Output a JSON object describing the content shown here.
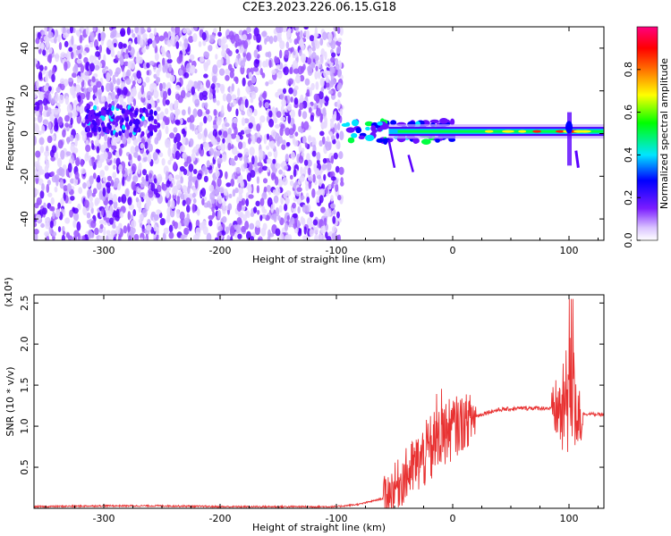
{
  "title": "C2E3.2023.226.06.15.G18",
  "chart_data": [
    {
      "type": "heatmap",
      "xlabel": "Height of straight line (km)",
      "ylabel": "Frequency (Hz)",
      "xlim": [
        -360,
        130
      ],
      "ylim": [
        -50,
        50
      ],
      "x_ticks": [
        -300,
        -200,
        -100,
        0,
        100
      ],
      "x_tick_labels": [
        "-300",
        "-200",
        "-100",
        "0",
        "100"
      ],
      "y_ticks": [
        -40,
        -20,
        0,
        20,
        40
      ],
      "y_tick_labels": [
        "-40",
        "-20",
        "0",
        "20",
        "40"
      ],
      "colorbar": {
        "label": "Normalized spectral amplitude",
        "range": [
          0.0,
          1.0
        ],
        "ticks": [
          0.0,
          0.2,
          0.4,
          0.6,
          0.8
        ],
        "tick_labels": [
          "0.0",
          "0.2",
          "0.4",
          "0.6",
          "0.8"
        ],
        "colors": [
          "#ffffff",
          "#d9c2ff",
          "#7a1cff",
          "#0000ff",
          "#00e5ff",
          "#00ff00",
          "#ffff00",
          "#ff7000",
          "#ff0000",
          "#ff007f"
        ]
      },
      "features": [
        {
          "x_range": [
            -360,
            -95
          ],
          "freq_range": [
            -50,
            50
          ],
          "amplitude": 0.15
        },
        {
          "x_range": [
            -315,
            -255
          ],
          "freq_center": 6,
          "amplitude": 0.45
        },
        {
          "x_range": [
            -95,
            0
          ],
          "freq_center": 1,
          "amplitude": 0.6
        },
        {
          "x_range": [
            0,
            130
          ],
          "freq_center": 1,
          "amplitude": 0.75
        },
        {
          "x": 100,
          "freq_range": [
            -15,
            10
          ],
          "amplitude": 0.45
        }
      ]
    },
    {
      "type": "line",
      "xlabel": "Height of straight line (km)",
      "ylabel": "SNR (10 * v/v)",
      "y_multiplier": "(x10⁴)",
      "xlim": [
        -360,
        130
      ],
      "ylim": [
        0.0,
        2.6
      ],
      "x_ticks": [
        -300,
        -200,
        -100,
        0,
        100
      ],
      "x_tick_labels": [
        "-300",
        "-200",
        "-100",
        "0",
        "100"
      ],
      "y_ticks": [
        0.5,
        1.0,
        1.5,
        2.0,
        2.5
      ],
      "y_tick_labels": [
        "0.5",
        "1.0",
        "1.5",
        "2.0",
        "2.5"
      ],
      "color": "#e83232",
      "x": [
        -360,
        -300,
        -250,
        -200,
        -150,
        -100,
        -80,
        -60,
        -50,
        -40,
        -30,
        -20,
        -10,
        0,
        10,
        20,
        30,
        40,
        60,
        80,
        90,
        95,
        100,
        105,
        110,
        115,
        130
      ],
      "y": [
        0.02,
        0.03,
        0.03,
        0.02,
        0.02,
        0.02,
        0.05,
        0.12,
        0.25,
        0.4,
        0.55,
        0.7,
        0.85,
        0.98,
        1.05,
        1.12,
        1.17,
        1.2,
        1.22,
        1.22,
        1.2,
        1.15,
        1.4,
        1.3,
        1.15,
        1.15,
        1.14
      ]
    }
  ]
}
